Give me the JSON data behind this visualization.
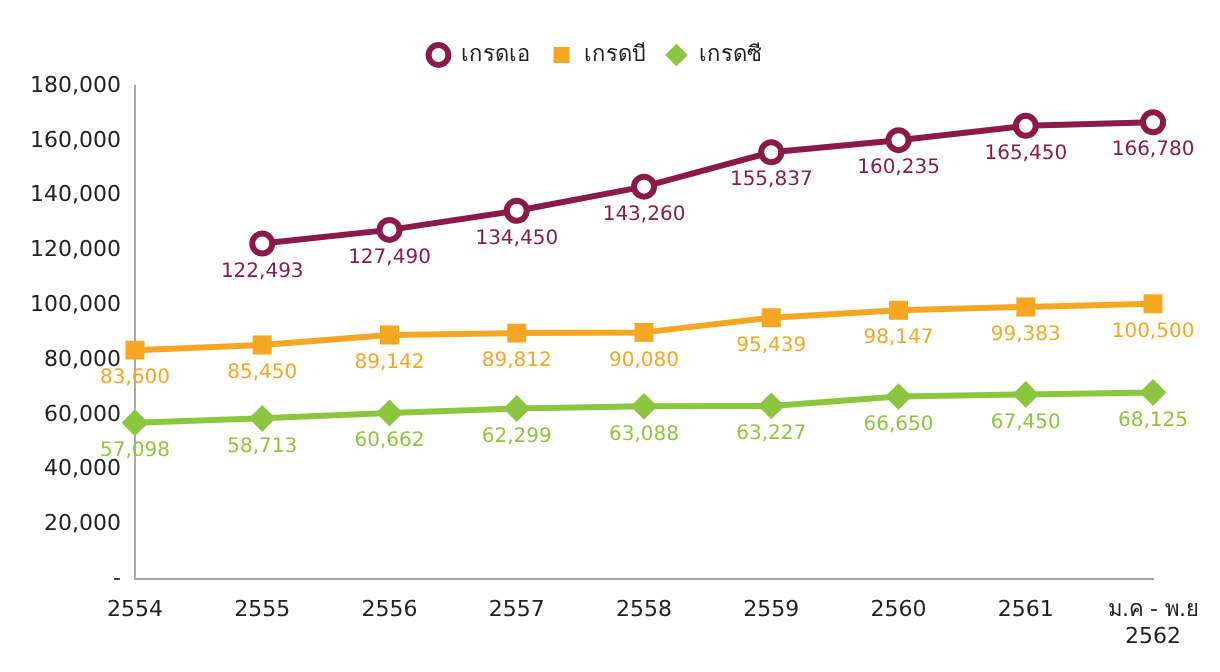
{
  "chart_data": {
    "type": "line",
    "categories": [
      "2554",
      "2555",
      "2556",
      "2557",
      "2558",
      "2559",
      "2560",
      "2561",
      "ม.ค - พ.ย\n2562"
    ],
    "series": [
      {
        "name": "เกรดเอ",
        "color": "#8b1a48",
        "marker": "circle",
        "values": [
          null,
          122493,
          127490,
          134450,
          143260,
          155837,
          160235,
          165450,
          166780
        ],
        "value_labels": [
          null,
          "122,493",
          "127,490",
          "134,450",
          "143,260",
          "155,837",
          "160,235",
          "165,450",
          "166,780"
        ]
      },
      {
        "name": "เกรดบี",
        "color": "#f5a623",
        "marker": "square",
        "values": [
          83600,
          85450,
          89142,
          89812,
          90080,
          95439,
          98147,
          99383,
          100500
        ],
        "value_labels": [
          "83,600",
          "85,450",
          "89,142",
          "89,812",
          "90,080",
          "95,439",
          "98,147",
          "99,383",
          "100,500"
        ]
      },
      {
        "name": "เกรดซี",
        "color": "#8cc63f",
        "marker": "diamond",
        "values": [
          57098,
          58713,
          60662,
          62299,
          63088,
          63227,
          66650,
          67450,
          68125
        ],
        "value_labels": [
          "57,098",
          "58,713",
          "60,662",
          "62,299",
          "63,088",
          "63,227",
          "66,650",
          "67,450",
          "68,125"
        ]
      }
    ],
    "ylim": [
      0,
      180000
    ],
    "yticks": [
      {
        "value": 0,
        "label": "-"
      },
      {
        "value": 20000,
        "label": "20,000"
      },
      {
        "value": 40000,
        "label": "40,000"
      },
      {
        "value": 60000,
        "label": "60,000"
      },
      {
        "value": 80000,
        "label": "80,000"
      },
      {
        "value": 100000,
        "label": "100,000"
      },
      {
        "value": 120000,
        "label": "120,000"
      },
      {
        "value": 140000,
        "label": "140,000"
      },
      {
        "value": 160000,
        "label": "160,000"
      },
      {
        "value": 180000,
        "label": "180,000"
      }
    ],
    "grid": false,
    "legend": "top"
  }
}
